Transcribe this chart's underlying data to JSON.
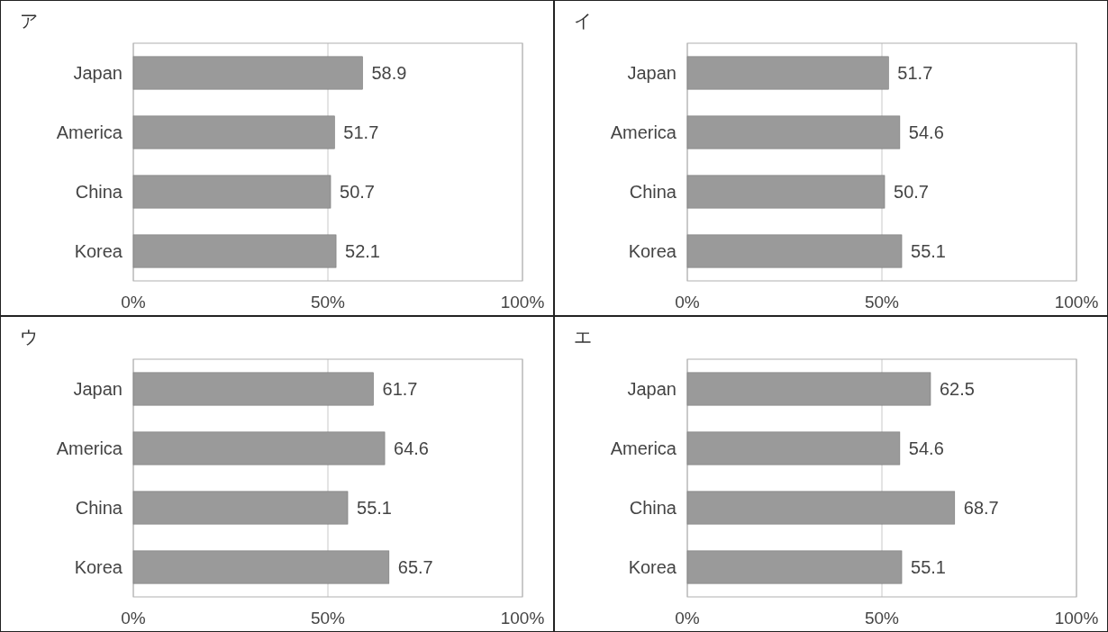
{
  "chart_data": [
    {
      "type": "bar",
      "orientation": "horizontal",
      "title": "ア",
      "categories": [
        "Japan",
        "America",
        "China",
        "Korea"
      ],
      "values": [
        58.9,
        51.7,
        50.7,
        52.1
      ],
      "color": "#9a9a9a",
      "xlim": [
        0,
        100
      ],
      "xticks": [
        {
          "value": 0,
          "label": "0%"
        },
        {
          "value": 50,
          "label": "50%"
        },
        {
          "value": 100,
          "label": "100%"
        }
      ],
      "grid": "x",
      "data_labels": true
    },
    {
      "type": "bar",
      "orientation": "horizontal",
      "title": "イ",
      "categories": [
        "Japan",
        "America",
        "China",
        "Korea"
      ],
      "values": [
        51.7,
        54.6,
        50.7,
        55.1
      ],
      "color": "#9a9a9a",
      "xlim": [
        0,
        100
      ],
      "xticks": [
        {
          "value": 0,
          "label": "0%"
        },
        {
          "value": 50,
          "label": "50%"
        },
        {
          "value": 100,
          "label": "100%"
        }
      ],
      "grid": "x",
      "data_labels": true
    },
    {
      "type": "bar",
      "orientation": "horizontal",
      "title": "ウ",
      "categories": [
        "Japan",
        "America",
        "China",
        "Korea"
      ],
      "values": [
        61.7,
        64.6,
        55.1,
        65.7
      ],
      "color": "#9a9a9a",
      "xlim": [
        0,
        100
      ],
      "xticks": [
        {
          "value": 0,
          "label": "0%"
        },
        {
          "value": 50,
          "label": "50%"
        },
        {
          "value": 100,
          "label": "100%"
        }
      ],
      "grid": "x",
      "data_labels": true
    },
    {
      "type": "bar",
      "orientation": "horizontal",
      "title": "エ",
      "categories": [
        "Japan",
        "America",
        "China",
        "Korea"
      ],
      "values": [
        62.5,
        54.6,
        68.7,
        55.1
      ],
      "color": "#9a9a9a",
      "xlim": [
        0,
        100
      ],
      "xticks": [
        {
          "value": 0,
          "label": "0%"
        },
        {
          "value": 50,
          "label": "50%"
        },
        {
          "value": 100,
          "label": "100%"
        }
      ],
      "grid": "x",
      "data_labels": true
    }
  ]
}
